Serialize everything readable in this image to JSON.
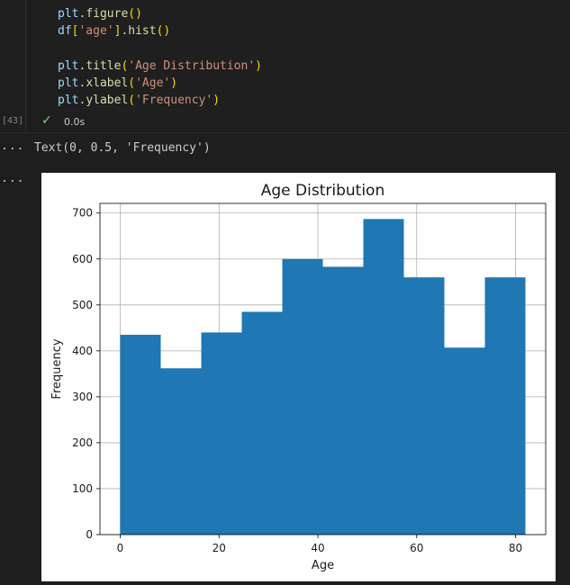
{
  "cell": {
    "code_lines": [
      [
        {
          "t": "plt",
          "c": "tok-id"
        },
        {
          "t": ".",
          "c": ""
        },
        {
          "t": "figure",
          "c": "tok-fn"
        },
        {
          "t": "()",
          "c": "tok-p"
        }
      ],
      [
        {
          "t": "df",
          "c": "tok-id"
        },
        {
          "t": "[",
          "c": "tok-p"
        },
        {
          "t": "'age'",
          "c": "tok-str"
        },
        {
          "t": "]",
          "c": "tok-p"
        },
        {
          "t": ".",
          "c": ""
        },
        {
          "t": "hist",
          "c": "tok-fn"
        },
        {
          "t": "()",
          "c": "tok-p"
        }
      ],
      [],
      [
        {
          "t": "plt",
          "c": "tok-id"
        },
        {
          "t": ".",
          "c": ""
        },
        {
          "t": "title",
          "c": "tok-fn"
        },
        {
          "t": "(",
          "c": "tok-p"
        },
        {
          "t": "'Age Distribution'",
          "c": "tok-str"
        },
        {
          "t": ")",
          "c": "tok-p"
        }
      ],
      [
        {
          "t": "plt",
          "c": "tok-id"
        },
        {
          "t": ".",
          "c": ""
        },
        {
          "t": "xlabel",
          "c": "tok-fn"
        },
        {
          "t": "(",
          "c": "tok-p"
        },
        {
          "t": "'Age'",
          "c": "tok-str"
        },
        {
          "t": ")",
          "c": "tok-p"
        }
      ],
      [
        {
          "t": "plt",
          "c": "tok-id"
        },
        {
          "t": ".",
          "c": ""
        },
        {
          "t": "ylabel",
          "c": "tok-fn"
        },
        {
          "t": "(",
          "c": "tok-p"
        },
        {
          "t": "'Frequency'",
          "c": "tok-str"
        },
        {
          "t": ")",
          "c": "tok-p"
        }
      ]
    ],
    "execution_count": "[43]",
    "status_icon": "check-icon",
    "exec_time": "0.0s"
  },
  "outputs": {
    "dots": "...",
    "text_output": "Text(0, 0.5, 'Frequency')"
  },
  "chart_data": {
    "type": "bar",
    "title": "Age Distribution",
    "xlabel": "Age",
    "ylabel": "Frequency",
    "bins": [
      {
        "x0": 0.0,
        "x1": 8.2,
        "count": 435
      },
      {
        "x0": 8.2,
        "x1": 16.4,
        "count": 362
      },
      {
        "x0": 16.4,
        "x1": 24.6,
        "count": 440
      },
      {
        "x0": 24.6,
        "x1": 32.8,
        "count": 485
      },
      {
        "x0": 32.8,
        "x1": 41.0,
        "count": 600
      },
      {
        "x0": 41.0,
        "x1": 49.2,
        "count": 583
      },
      {
        "x0": 49.2,
        "x1": 57.4,
        "count": 687
      },
      {
        "x0": 57.4,
        "x1": 65.6,
        "count": 560
      },
      {
        "x0": 65.6,
        "x1": 73.8,
        "count": 407
      },
      {
        "x0": 73.8,
        "x1": 82.0,
        "count": 560
      }
    ],
    "xlim": [
      -4.1,
      86.1
    ],
    "ylim": [
      0,
      721
    ],
    "xticks": [
      0,
      20,
      40,
      60,
      80
    ],
    "yticks": [
      0,
      100,
      200,
      300,
      400,
      500,
      600,
      700
    ],
    "grid": true,
    "bar_color": "#1f77b4"
  }
}
